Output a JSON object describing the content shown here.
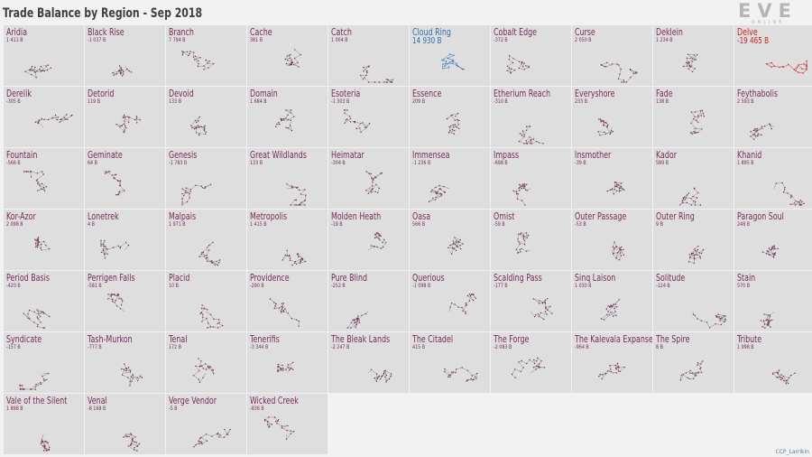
{
  "title": "Trade Balance by Region - Sep 2018",
  "logo": {
    "main": "EVE",
    "sub": "ONLINE"
  },
  "credit": "CCP_Larrikin",
  "colors": {
    "positive_strong": "#2f6db5",
    "negative_strong": "#c82020",
    "neutral": "#7a2a58",
    "tile_bg": "#dedede"
  },
  "chart_data": {
    "type": "small-multiples",
    "unit": "B",
    "regions": [
      {
        "name": "Aridia",
        "value": "1 411 B"
      },
      {
        "name": "Black Rise",
        "value": "-1 037 B"
      },
      {
        "name": "Branch",
        "value": "7 794 B"
      },
      {
        "name": "Cache",
        "value": "381 B"
      },
      {
        "name": "Catch",
        "value": "1 004 B"
      },
      {
        "name": "Cloud Ring",
        "value": "14 930 B",
        "highlight": "positive"
      },
      {
        "name": "Cobalt Edge",
        "value": "-372 B"
      },
      {
        "name": "Curse",
        "value": "2 050 B"
      },
      {
        "name": "Deklein",
        "value": "1 234 B"
      },
      {
        "name": "Delve",
        "value": "-19 465 B",
        "highlight": "negative"
      },
      {
        "name": "Derelik",
        "value": "-305 B"
      },
      {
        "name": "Detorid",
        "value": "119 B"
      },
      {
        "name": "Devoid",
        "value": "133 B"
      },
      {
        "name": "Domain",
        "value": "1 684 B"
      },
      {
        "name": "Esoteria",
        "value": "-1 303 B"
      },
      {
        "name": "Essence",
        "value": "209 B"
      },
      {
        "name": "Etherium Reach",
        "value": "-310 B"
      },
      {
        "name": "Everyshore",
        "value": "233 B"
      },
      {
        "name": "Fade",
        "value": "138 B"
      },
      {
        "name": "Feythabolis",
        "value": "2 593 B"
      },
      {
        "name": "Fountain",
        "value": "-566 B"
      },
      {
        "name": "Geminate",
        "value": "64 B"
      },
      {
        "name": "Genesis",
        "value": "-1 783 B"
      },
      {
        "name": "Great Wildlands",
        "value": "133 B"
      },
      {
        "name": "Heimatar",
        "value": "-304 B"
      },
      {
        "name": "Immensea",
        "value": "-1 236 B"
      },
      {
        "name": "Impass",
        "value": "-698 B"
      },
      {
        "name": "Insmother",
        "value": "-39 B"
      },
      {
        "name": "Kador",
        "value": "589 B"
      },
      {
        "name": "Khanid",
        "value": "1 895 B"
      },
      {
        "name": "Kor-Azor",
        "value": "2 098 B"
      },
      {
        "name": "Lonetrek",
        "value": "4 B"
      },
      {
        "name": "Malpais",
        "value": "1 971 B"
      },
      {
        "name": "Metropolis",
        "value": "1 415 B"
      },
      {
        "name": "Molden Heath",
        "value": "-19 B"
      },
      {
        "name": "Oasa",
        "value": "566 B"
      },
      {
        "name": "Omist",
        "value": "-59 B"
      },
      {
        "name": "Outer Passage",
        "value": "-53 B"
      },
      {
        "name": "Outer Ring",
        "value": "9 B"
      },
      {
        "name": "Paragon Soul",
        "value": "248 B"
      },
      {
        "name": "Period Basis",
        "value": "-420 B"
      },
      {
        "name": "Perrigen Falls",
        "value": "-581 B"
      },
      {
        "name": "Placid",
        "value": "10 B"
      },
      {
        "name": "Providence",
        "value": "-290 B"
      },
      {
        "name": "Pure Blind",
        "value": "-252 B"
      },
      {
        "name": "Querious",
        "value": "-1 098 B"
      },
      {
        "name": "Scalding Pass",
        "value": "-177 B"
      },
      {
        "name": "Sinq Laison",
        "value": "1 030 B"
      },
      {
        "name": "Solitude",
        "value": "-124 B"
      },
      {
        "name": "Stain",
        "value": "570 B"
      },
      {
        "name": "Syndicate",
        "value": "-157 B"
      },
      {
        "name": "Tash-Murkon",
        "value": "-777 B"
      },
      {
        "name": "Tenal",
        "value": "172 B"
      },
      {
        "name": "Tenerifis",
        "value": "-3 344 B"
      },
      {
        "name": "The Bleak Lands",
        "value": "-2 247 B"
      },
      {
        "name": "The Citadel",
        "value": "415 B"
      },
      {
        "name": "The Forge",
        "value": "-2 083 B"
      },
      {
        "name": "The Kalevala Expanse",
        "value": "-964 B"
      },
      {
        "name": "The Spire",
        "value": "8 B"
      },
      {
        "name": "Tribute",
        "value": "1 998 B"
      },
      {
        "name": "Vale of the Silent",
        "value": "1 898 B"
      },
      {
        "name": "Venal",
        "value": "-8 168 B"
      },
      {
        "name": "Verge Vendor",
        "value": "-5 B"
      },
      {
        "name": "Wicked Creek",
        "value": "-836 B"
      }
    ]
  }
}
